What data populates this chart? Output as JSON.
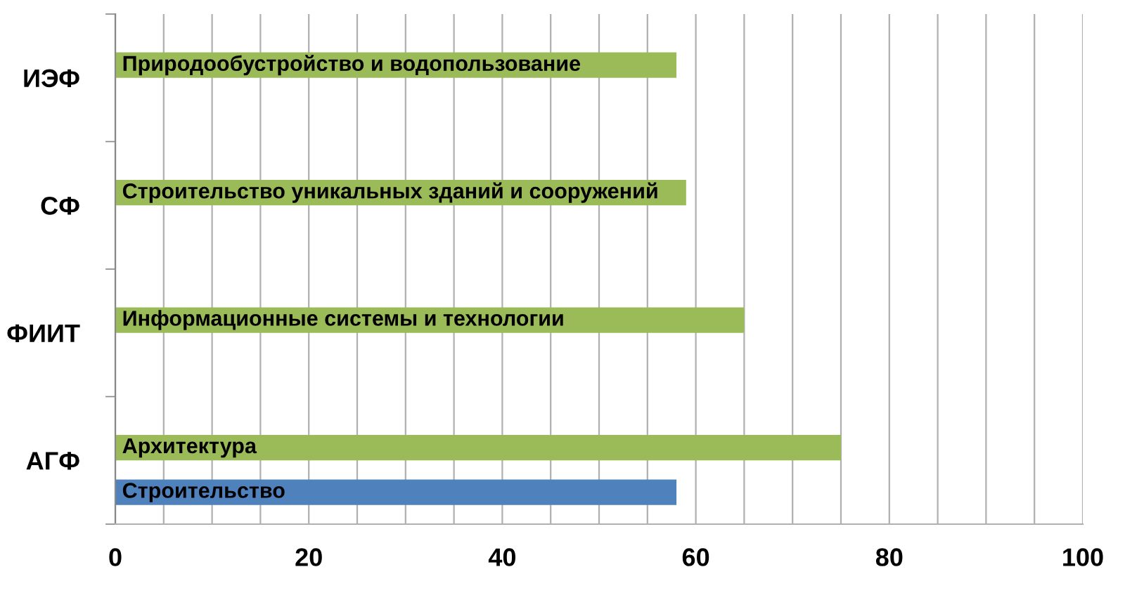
{
  "chart_data": {
    "type": "bar",
    "orientation": "horizontal",
    "categories": [
      "ИЭФ",
      "СФ",
      "ФИИТ",
      "АГФ"
    ],
    "series": [
      {
        "color": "#9bbb59",
        "values": [
          58,
          59,
          65,
          75
        ],
        "value_labels": [
          "Природообустройство и водопользование",
          "Строительство уникальных зданий и сооружений",
          "Информационные системы и технологии",
          "Архитектура"
        ]
      },
      {
        "color": "#4f81bd",
        "values": [
          null,
          null,
          null,
          58
        ],
        "value_labels": [
          null,
          null,
          null,
          "Строительство"
        ]
      }
    ],
    "xlim": [
      0,
      100
    ],
    "xticks": [
      0,
      {
        "value": 5,
        "label": null
      },
      {
        "value": 10,
        "label": null
      },
      {
        "value": 15,
        "label": null
      },
      20,
      {
        "value": 25,
        "label": null
      },
      {
        "value": 30,
        "label": null
      },
      {
        "value": 35,
        "label": null
      },
      40,
      {
        "value": 45,
        "label": null
      },
      {
        "value": 50,
        "label": null
      },
      {
        "value": 55,
        "label": null
      },
      60,
      {
        "value": 65,
        "label": null
      },
      {
        "value": 70,
        "label": null
      },
      {
        "value": 75,
        "label": null
      },
      80,
      {
        "value": 85,
        "label": null
      },
      {
        "value": 90,
        "label": null
      },
      {
        "value": 95,
        "label": null
      },
      100
    ],
    "grid": "x",
    "legend": false
  }
}
